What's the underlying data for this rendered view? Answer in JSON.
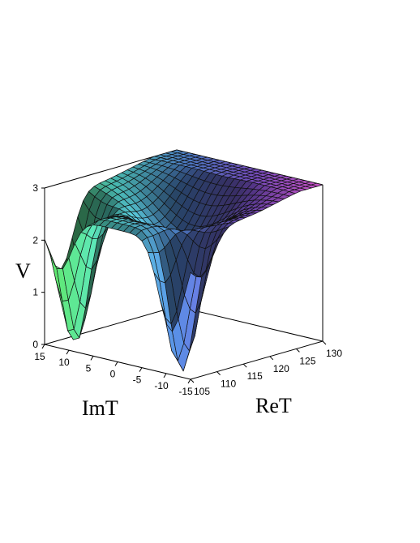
{
  "chart_data": {
    "type": "surface3d",
    "title": "",
    "zlabel": "V",
    "xlabel": "ReT",
    "ylabel": "ImT",
    "x_range": [
      105,
      130
    ],
    "y_range": [
      -15,
      15
    ],
    "z_range": [
      0,
      3
    ],
    "x_ticks": [
      "105",
      "110",
      "115",
      "120",
      "125",
      "130"
    ],
    "y_ticks": [
      "15",
      "10",
      "5",
      "0",
      "-5",
      "-10",
      "-15"
    ],
    "z_ticks": [
      "0",
      "1",
      "2",
      "3"
    ],
    "grid": false,
    "colors": {
      "low_green": "#60e85a",
      "cyan": "#5ce8e0",
      "blue": "#5a8fe6",
      "violet": "#8a58de",
      "magenta": "#f060ea"
    },
    "shape": {
      "minima": [
        {
          "ReT": 108,
          "ImT": 12,
          "V": 0.0
        },
        {
          "ReT": 107,
          "ImT": -11,
          "V": 0.0
        }
      ],
      "saddle": {
        "ReT": 117,
        "ImT": 0,
        "V": 2.0
      },
      "max_height_at_large_ReT": 3.0
    }
  }
}
